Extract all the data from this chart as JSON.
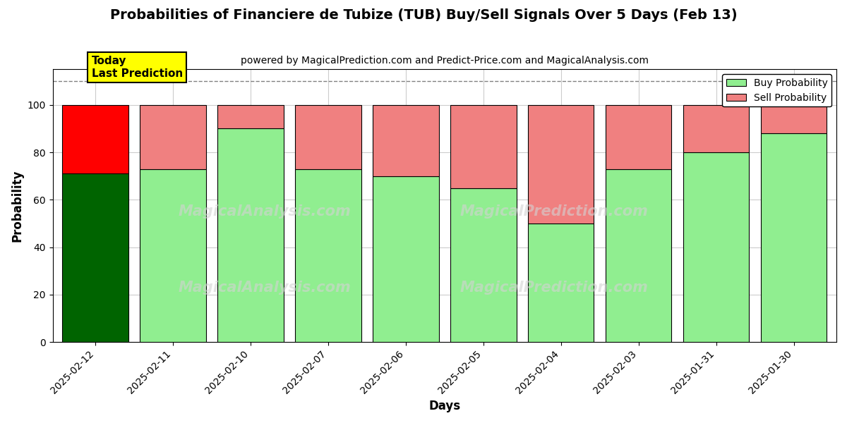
{
  "title": "Probabilities of Financiere de Tubize (TUB) Buy/Sell Signals Over 5 Days (Feb 13)",
  "subtitle": "powered by MagicalPrediction.com and Predict-Price.com and MagicalAnalysis.com",
  "xlabel": "Days",
  "ylabel": "Probability",
  "dates": [
    "2025-02-12",
    "2025-02-11",
    "2025-02-10",
    "2025-02-07",
    "2025-02-06",
    "2025-02-05",
    "2025-02-04",
    "2025-02-03",
    "2025-01-31",
    "2025-01-30"
  ],
  "buy_values": [
    71,
    73,
    90,
    73,
    70,
    65,
    50,
    73,
    80,
    88
  ],
  "sell_values": [
    29,
    27,
    10,
    27,
    30,
    35,
    50,
    27,
    20,
    12
  ],
  "today_bar_buy_color": "#006400",
  "today_bar_sell_color": "#FF0000",
  "other_bar_buy_color": "#90EE90",
  "other_bar_sell_color": "#F08080",
  "bar_edgecolor": "#000000",
  "today_annotation_bg": "#FFFF00",
  "today_annotation_text": "Today\nLast Prediction",
  "legend_buy_label": "Buy Probability",
  "legend_sell_label": "Sell Probability",
  "ylim": [
    0,
    115
  ],
  "yticks": [
    0,
    20,
    40,
    60,
    80,
    100
  ],
  "dashed_line_y": 110,
  "background_color": "#ffffff",
  "grid_color": "#cccccc"
}
